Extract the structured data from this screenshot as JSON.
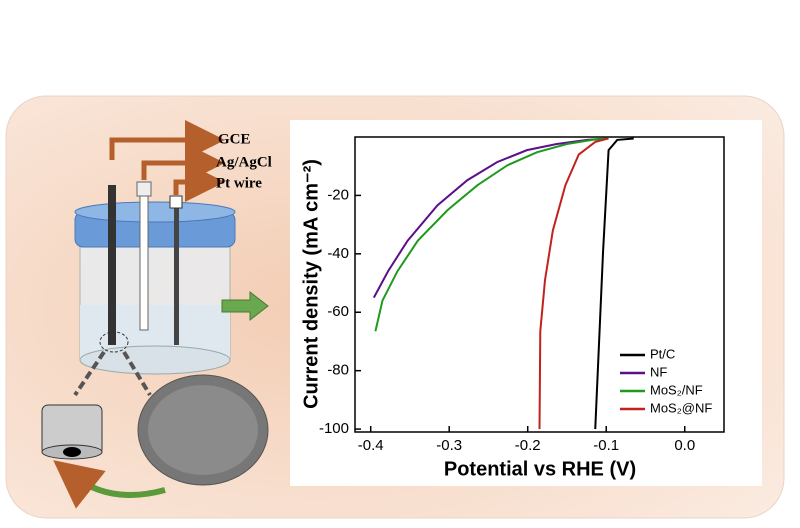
{
  "labels": {
    "gce": "GCE",
    "reference": "Ag/AgCl",
    "counter": "Pt wire"
  },
  "chart_data": {
    "type": "line",
    "xlabel": "Potential vs RHE (V)",
    "ylabel": "Current density (mA cm⁻²)",
    "xlim": [
      -0.42,
      0.05
    ],
    "xticks": [
      -0.4,
      -0.3,
      -0.2,
      -0.1,
      {
        "value": 0,
        "label": "0.0"
      }
    ],
    "ylim": [
      -101,
      0
    ],
    "yticks": [
      -20,
      -40,
      -60,
      -80,
      -100
    ],
    "legend": "lower right",
    "series": [
      {
        "name": "Pt/C",
        "color": "#000000",
        "x": [
          -0.114,
          -0.104,
          -0.097,
          -0.086,
          -0.065
        ],
        "values": [
          -100,
          -39,
          -4.5,
          -1,
          -0.5
        ]
      },
      {
        "name": "NF",
        "color": "#5b0f8a",
        "x": [
          -0.396,
          -0.378,
          -0.353,
          -0.315,
          -0.277,
          -0.239,
          -0.201,
          -0.163,
          -0.124,
          -0.099
        ],
        "values": [
          -55,
          -46,
          -35.5,
          -23.4,
          -14.8,
          -8.6,
          -4.5,
          -2.4,
          -1,
          -0.5
        ]
      },
      {
        "name": "MoS₂/NF",
        "color": "#1e9a1e",
        "x": [
          -0.394,
          -0.385,
          -0.366,
          -0.34,
          -0.302,
          -0.264,
          -0.226,
          -0.188,
          -0.15,
          -0.118,
          -0.099
        ],
        "values": [
          -66.5,
          -56,
          -46,
          -35.5,
          -25,
          -16.5,
          -9.7,
          -5.2,
          -2.4,
          -1,
          -0.5
        ]
      },
      {
        "name": "MoS₂@NF",
        "color": "#c0221e",
        "x": [
          -0.185,
          -0.184,
          -0.178,
          -0.168,
          -0.152,
          -0.135,
          -0.114,
          -0.097
        ],
        "values": [
          -100,
          -66.5,
          -49,
          -32,
          -16.5,
          -6,
          -1.7,
          -0.5
        ]
      }
    ]
  }
}
